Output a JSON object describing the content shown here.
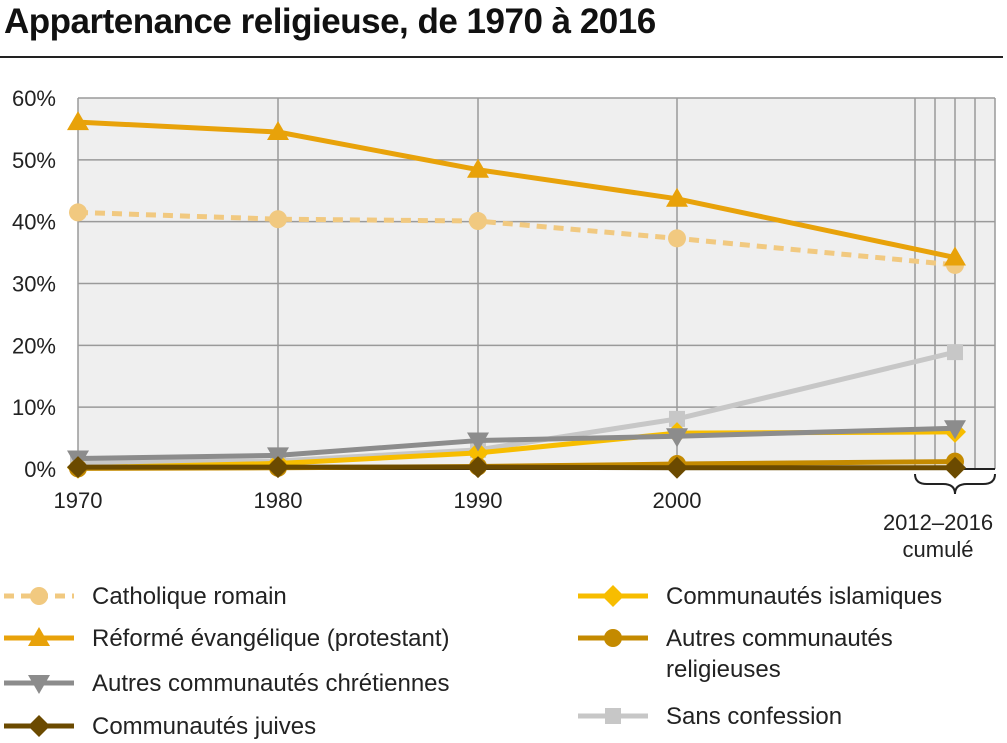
{
  "chart_data": {
    "type": "line",
    "title": "Appartenance religieuse, de 1970 à 2016",
    "x": [
      "1970",
      "1980",
      "1990",
      "2000",
      "2012–2016"
    ],
    "x_tick_labels": [
      "1970",
      "1980",
      "1990",
      "2000"
    ],
    "x_note": [
      "2012–2016",
      "cumulé"
    ],
    "ylim": [
      0,
      60
    ],
    "y_ticks": [
      0,
      10,
      20,
      30,
      40,
      50,
      60
    ],
    "y_tick_labels": [
      "0%",
      "10%",
      "20%",
      "30%",
      "40%",
      "50%",
      "60%"
    ],
    "grid": true,
    "legend_position": "bottom",
    "series": [
      {
        "name": "Catholique romain",
        "values": [
          41.5,
          40.4,
          40.1,
          37.3,
          33.0
        ],
        "color": "#f1c980",
        "marker": "circle",
        "dashed": true
      },
      {
        "name": "Réformé évangélique (protestant)",
        "values": [
          56.1,
          54.5,
          48.4,
          43.7,
          34.2
        ],
        "color": "#e8a20a",
        "marker": "triangle-up",
        "dashed": false
      },
      {
        "name": "Autres communautés chrétiennes",
        "values": [
          1.7,
          2.2,
          4.6,
          5.3,
          6.6
        ],
        "color": "#8c8c8c",
        "marker": "triangle-down",
        "dashed": false
      },
      {
        "name": "Communautés juives",
        "values": [
          0.3,
          0.3,
          0.3,
          0.2,
          0.2
        ],
        "color": "#6b4a00",
        "marker": "diamond",
        "dashed": false
      },
      {
        "name": "Communautés islamiques",
        "values": [
          0.2,
          0.9,
          2.6,
          5.8,
          6.0
        ],
        "color": "#f7bd00",
        "marker": "diamond",
        "dashed": false
      },
      {
        "name": "Autres communautés religieuses",
        "values": [
          0.1,
          0.2,
          0.4,
          0.8,
          1.2
        ],
        "color": "#c48a00",
        "marker": "circle",
        "dashed": false
      },
      {
        "name": "Sans confession",
        "values": [
          1.1,
          1.3,
          3.1,
          8.1,
          18.9
        ],
        "color": "#c7c7c7",
        "marker": "square",
        "dashed": false
      }
    ],
    "draw_order": [
      6,
      4,
      2,
      5,
      3,
      0,
      1
    ],
    "legend_left": [
      0,
      1,
      2,
      3
    ],
    "legend_right": [
      4,
      5,
      6
    ],
    "legend_wrap": {
      "5": [
        "Autres communautés",
        "religieuses"
      ]
    }
  }
}
